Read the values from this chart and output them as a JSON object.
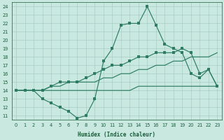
{
  "xlabel": "Humidex (Indice chaleur)",
  "x_values": [
    0,
    1,
    2,
    3,
    4,
    5,
    6,
    7,
    8,
    9,
    10,
    11,
    12,
    13,
    14,
    15,
    16,
    17,
    18,
    19,
    20,
    21,
    22,
    23
  ],
  "line_peak": [
    14,
    14,
    14,
    13,
    12.5,
    12,
    11.5,
    10.7,
    11,
    13,
    17.5,
    19,
    21.8,
    22,
    22,
    24,
    21.8,
    19.5,
    19,
    18.5,
    16,
    15.5,
    16.5,
    14.5
  ],
  "line_upper": [
    14,
    14,
    14,
    14,
    14.5,
    15,
    15,
    15,
    15.5,
    16,
    16.5,
    17,
    17,
    17.5,
    18,
    18,
    18.5,
    18.5,
    18.5,
    19,
    18.5,
    16,
    16.5,
    14.5
  ],
  "line_diag1": [
    14,
    14,
    14,
    14,
    14.5,
    14.5,
    15,
    15,
    15,
    15,
    15.5,
    15.5,
    16,
    16,
    16.5,
    16.5,
    17,
    17,
    17.5,
    17.5,
    18,
    18,
    18,
    18.5
  ],
  "line_diag2": [
    14,
    14,
    14,
    14,
    14,
    14,
    14,
    14,
    14,
    14,
    14,
    14,
    14,
    14,
    14.5,
    14.5,
    14.5,
    14.5,
    14.5,
    14.5,
    14.5,
    14.5,
    14.5,
    14.5
  ],
  "line_color": "#2e7d62",
  "bg_color": "#c8e8e0",
  "grid_color": "#a8ccc4",
  "text_color": "#1a5c3a",
  "ylim": [
    10.5,
    24.5
  ],
  "xlim": [
    -0.5,
    23.5
  ],
  "yticks": [
    11,
    12,
    13,
    14,
    15,
    16,
    17,
    18,
    19,
    20,
    21,
    22,
    23,
    24
  ],
  "xticks": [
    0,
    1,
    2,
    3,
    4,
    5,
    6,
    7,
    8,
    9,
    10,
    11,
    12,
    13,
    14,
    15,
    16,
    17,
    18,
    19,
    20,
    21,
    22,
    23
  ]
}
